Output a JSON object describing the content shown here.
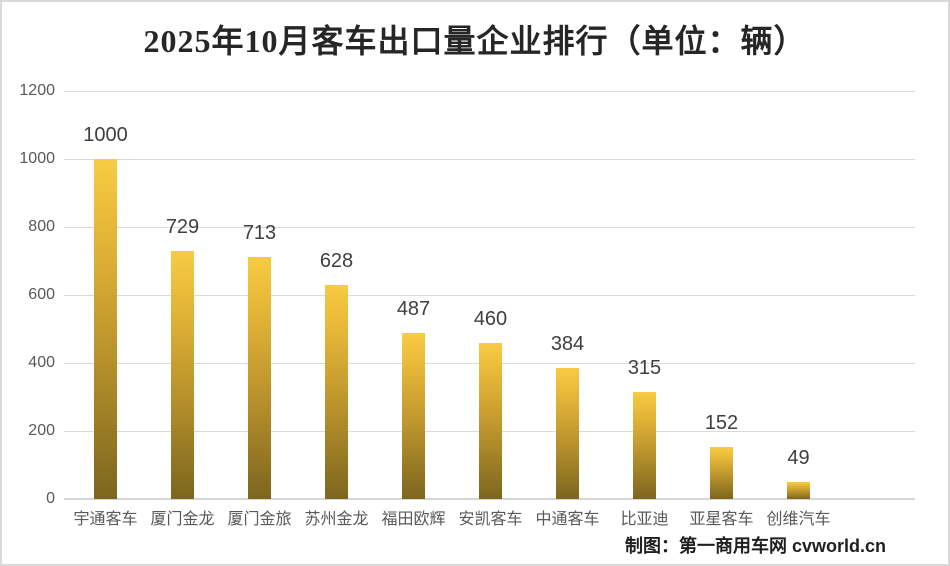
{
  "chart_data": {
    "type": "bar",
    "title": "2025年10月客车出口量企业排行（单位：辆）",
    "categories": [
      "宇通客车",
      "厦门金龙",
      "厦门金旅",
      "苏州金龙",
      "福田欧辉",
      "安凯客车",
      "中通客车",
      "比亚迪",
      "亚星客车",
      "创维汽车"
    ],
    "values": [
      1000,
      729,
      713,
      628,
      487,
      460,
      384,
      315,
      152,
      49
    ],
    "xlabel": "",
    "ylabel": "",
    "ylim": [
      0,
      1200
    ],
    "yticks": [
      0,
      200,
      400,
      600,
      800,
      1000,
      1200
    ],
    "grid": "horizontal",
    "legend_position": "none",
    "data_labels": "above-bars",
    "bar_color_top": "#F7CB45",
    "bar_color_bottom": "#7C661E"
  },
  "footer": {
    "credit": "制图：第一商用车网 cvworld.cn"
  },
  "colors": {
    "background": "#FFFFFF",
    "border": "#D9D9D9",
    "gridline": "#DADADA",
    "title_text": "#262626",
    "axis_label_text": "#595959",
    "data_label_text": "#3F3F3F",
    "credit_text": "#1F1F1F"
  }
}
